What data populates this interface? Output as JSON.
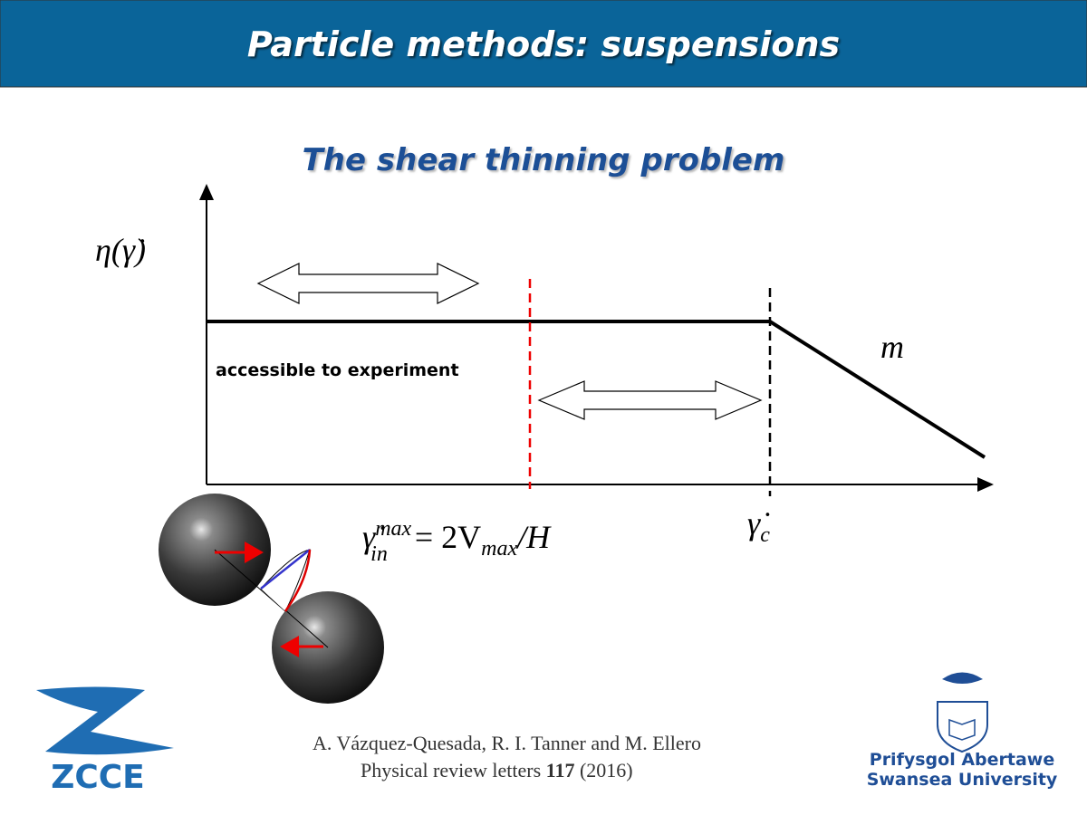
{
  "header": {
    "title": "Particle methods: suspensions"
  },
  "subtitle": "The shear thinning problem",
  "diagram": {
    "y_label": "η(γ̇)",
    "slope_label": "m",
    "region_label": "accessible to experiment",
    "formula": {
      "base": "γ̇",
      "sup": "max",
      "sub": "in",
      "rhs": "= 2V",
      "rhs_sub": "max",
      "rhs_tail": "/H"
    },
    "critical": {
      "base": "γ̇",
      "sub": "c"
    }
  },
  "citation": {
    "authors": "A. Vázquez-Quesada, R. I. Tanner and M. Ellero",
    "journal": "Physical review letters",
    "volume": "117",
    "year": "(2016)"
  },
  "logos": {
    "left": "ZCCE",
    "right_line1": "Prifysgol Abertawe",
    "right_line2": "Swansea University"
  }
}
